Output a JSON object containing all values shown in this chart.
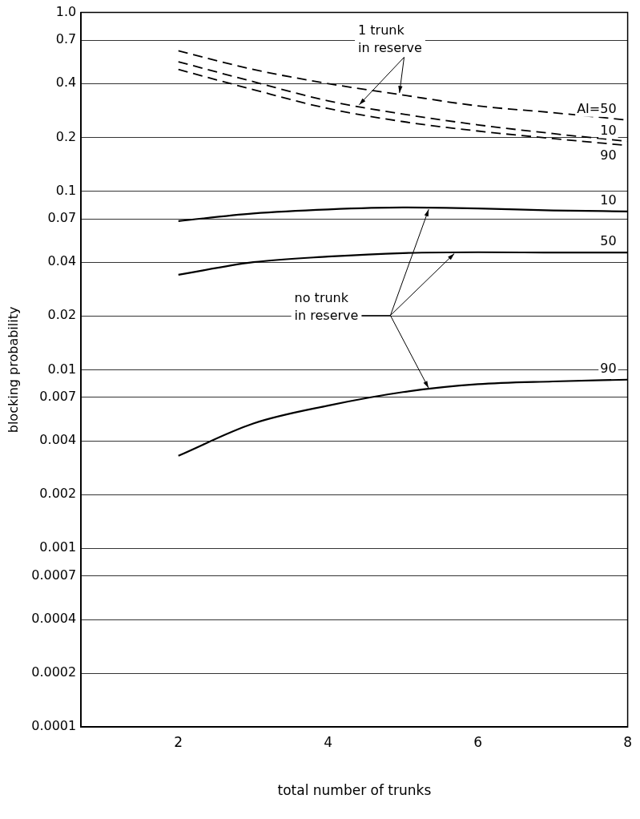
{
  "chart_data": {
    "type": "line",
    "xlabel": "total number of trunks",
    "ylabel": "blocking probability",
    "xlim": [
      0.7,
      8
    ],
    "xticks": [
      2,
      4,
      6,
      8
    ],
    "ylim": [
      0.0001,
      1
    ],
    "yticks": [
      0.0001,
      0.0002,
      0.0004,
      {
        "value": 0.0007,
        "label": "0.0007"
      },
      0.001,
      0.002,
      0.004,
      0.007,
      0.01,
      0.02,
      0.04,
      0.07,
      0.1,
      0.2,
      0.4,
      0.7,
      {
        "value": 1,
        "label": "1.0"
      }
    ],
    "log": "y",
    "grid": "y",
    "legend": false,
    "marker": "none",
    "x": [
      2,
      3,
      4,
      5,
      6,
      7,
      8
    ],
    "series": [
      {
        "name": "AI=50",
        "color": "#000000",
        "line_style": "dashed",
        "values": [
          0.61,
          0.48,
          0.4,
          0.345,
          0.3,
          0.275,
          0.25
        ]
      },
      {
        "name": "10",
        "color": "#000000",
        "line_style": "dashed",
        "values": [
          0.53,
          0.41,
          0.32,
          0.27,
          0.235,
          0.21,
          0.19
        ]
      },
      {
        "name": "90",
        "color": "#000000",
        "line_style": "dashed",
        "values": [
          0.48,
          0.37,
          0.29,
          0.245,
          0.217,
          0.197,
          0.18
        ]
      },
      {
        "name": "10",
        "color": "#000000",
        "line_style": "solid",
        "values": [
          0.068,
          0.075,
          0.079,
          0.081,
          0.08,
          0.078,
          0.077
        ]
      },
      {
        "name": "50",
        "color": "#000000",
        "line_style": "solid",
        "values": [
          0.034,
          0.04,
          0.043,
          0.045,
          0.0455,
          0.0453,
          0.0453
        ]
      },
      {
        "name": "90",
        "color": "#000000",
        "line_style": "solid",
        "values": [
          0.0033,
          0.005,
          0.0063,
          0.0075,
          0.0083,
          0.0086,
          0.0088
        ]
      }
    ],
    "annotations": [
      {
        "text": "1 trunk in reserve",
        "x": 4.4,
        "y": 0.3
      },
      "no trunk in reserve"
    ]
  }
}
